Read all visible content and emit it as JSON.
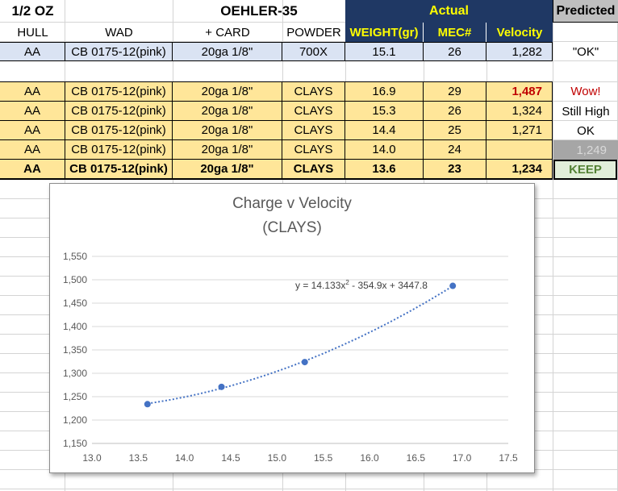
{
  "sheet": {
    "top_left": "1/2 OZ",
    "load_title": "OEHLER-35",
    "actual_label": "Actual",
    "predicted_label": "Predicted",
    "headers": [
      "HULL",
      "WAD",
      "+ CARD",
      "POWDER",
      "WEIGHT(gr)",
      "MEC#",
      "Velocity"
    ],
    "reference_row": [
      "AA",
      "CB 0175-12(pink)",
      "20ga 1/8\"",
      "700X",
      "15.1",
      "26",
      "1,282",
      "\"OK\""
    ],
    "rows": [
      [
        "AA",
        "CB 0175-12(pink)",
        "20ga 1/8\"",
        "CLAYS",
        "16.9",
        "29",
        "1,487",
        "Wow!"
      ],
      [
        "AA",
        "CB 0175-12(pink)",
        "20ga 1/8\"",
        "CLAYS",
        "15.3",
        "26",
        "1,324",
        "Still High"
      ],
      [
        "AA",
        "CB 0175-12(pink)",
        "20ga 1/8\"",
        "CLAYS",
        "14.4",
        "25",
        "1,271",
        "OK"
      ],
      [
        "AA",
        "CB 0175-12(pink)",
        "20ga 1/8\"",
        "CLAYS",
        "14.0",
        "24",
        "",
        "1,249"
      ],
      [
        "AA",
        "CB 0175-12(pink)",
        "20ga 1/8\"",
        "CLAYS",
        "13.6",
        "23",
        "1,234",
        "KEEP"
      ]
    ],
    "colors": {
      "header_blue": "#1f3864",
      "header_text_yellow": "#ffff00",
      "reference_row_bg": "#dae3f3",
      "data_row_bg": "#ffe699",
      "wow_red": "#c00000",
      "predicted_gray_bg": "#a6a6a6",
      "keep_green_bg": "#e2efda",
      "keep_green_text": "#548235"
    }
  },
  "chart_data": {
    "type": "scatter",
    "title": "Charge v Velocity",
    "subtitle": "(CLAYS)",
    "x": [
      13.6,
      14.4,
      15.3,
      16.9
    ],
    "y": [
      1234,
      1271,
      1324,
      1487
    ],
    "trendline": {
      "type": "polynomial",
      "order": 2,
      "coefficients": [
        14.133,
        -354.9,
        3447.8
      ],
      "label_prefix": "y = 14.133x",
      "label_exp": "2",
      "label_suffix": " - 354.9x + 3447.8"
    },
    "xlim": [
      13.0,
      17.5
    ],
    "ylim": [
      1150,
      1550
    ],
    "x_ticks": [
      "13.0",
      "13.5",
      "14.0",
      "14.5",
      "15.0",
      "15.5",
      "16.0",
      "16.5",
      "17.0",
      "17.5"
    ],
    "y_ticks": [
      "1,150",
      "1,200",
      "1,250",
      "1,300",
      "1,350",
      "1,400",
      "1,450",
      "1,500",
      "1,550"
    ],
    "grid": true,
    "marker_color": "#4472c4"
  }
}
